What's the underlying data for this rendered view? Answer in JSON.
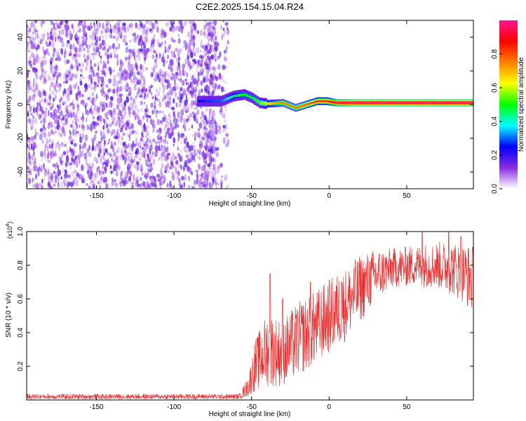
{
  "title": "C2E2.2025.154.15.04.R24",
  "chart_data": [
    {
      "type": "heatmap",
      "xlabel": "Height of straight line (km)",
      "ylabel": "Frequency (Hz)",
      "xlim": [
        -195,
        93
      ],
      "ylim": [
        -50,
        50
      ],
      "xticks": [
        -150,
        -100,
        -50,
        0,
        50
      ],
      "yticks": [
        -40,
        -20,
        0,
        20,
        40
      ],
      "colorbar": {
        "label": "Normalized spectral amplitude",
        "range": [
          0,
          1
        ],
        "ticks": [
          0.0,
          0.2,
          0.4,
          0.6,
          0.8
        ],
        "colors": [
          "#ffffff",
          "#8a2be2",
          "#0000ff",
          "#00ffff",
          "#00ff00",
          "#ffff00",
          "#ff8000",
          "#ff0000",
          "#ff1493"
        ]
      },
      "noise_region": {
        "x_range": [
          -195,
          -65
        ],
        "freq_range": [
          -50,
          50
        ],
        "amplitude": [
          0.05,
          0.2
        ]
      },
      "signal_track": [
        {
          "x": -85,
          "freq": 2,
          "amp": 0.25
        },
        {
          "x": -70,
          "freq": 2,
          "amp": 0.3
        },
        {
          "x": -62,
          "freq": 5,
          "amp": 0.45
        },
        {
          "x": -55,
          "freq": 6,
          "amp": 0.5
        },
        {
          "x": -50,
          "freq": 4,
          "amp": 0.5
        },
        {
          "x": -45,
          "freq": 1,
          "amp": 0.55
        },
        {
          "x": -40,
          "freq": 0.5,
          "amp": 0.65
        },
        {
          "x": -30,
          "freq": 1,
          "amp": 0.75
        },
        {
          "x": -22,
          "freq": -2,
          "amp": 0.75
        },
        {
          "x": -15,
          "freq": 0,
          "amp": 0.8
        },
        {
          "x": -8,
          "freq": 2,
          "amp": 0.85
        },
        {
          "x": -2,
          "freq": 2,
          "amp": 0.85
        },
        {
          "x": 5,
          "freq": 1,
          "amp": 0.95
        },
        {
          "x": 20,
          "freq": 1,
          "amp": 0.98
        },
        {
          "x": 50,
          "freq": 1,
          "amp": 0.98
        },
        {
          "x": 80,
          "freq": 1,
          "amp": 0.98
        },
        {
          "x": 93,
          "freq": 1,
          "amp": 0.98
        }
      ]
    },
    {
      "type": "line",
      "xlabel": "Height of straight line (km)",
      "ylabel": "SNR (10 * v/v)",
      "y_multiplier": "(x10",
      "y_multiplier_exp": "4",
      "y_multiplier_close": ")",
      "xlim": [
        -195,
        93
      ],
      "ylim": [
        0,
        1.0
      ],
      "xticks": [
        -150,
        -100,
        -50,
        0,
        50
      ],
      "yticks": [
        0.2,
        0.4,
        0.6,
        0.8,
        1.0
      ],
      "series_color": "#ee3030",
      "envelope": [
        {
          "x": -195,
          "base": 0.02,
          "spread": 0.015
        },
        {
          "x": -58,
          "base": 0.02,
          "spread": 0.015
        },
        {
          "x": -52,
          "base": 0.08,
          "spread": 0.06
        },
        {
          "x": -48,
          "base": 0.2,
          "spread": 0.15
        },
        {
          "x": -40,
          "base": 0.3,
          "spread": 0.22
        },
        {
          "x": -30,
          "base": 0.28,
          "spread": 0.2
        },
        {
          "x": -20,
          "base": 0.36,
          "spread": 0.22
        },
        {
          "x": -10,
          "base": 0.42,
          "spread": 0.22
        },
        {
          "x": 0,
          "base": 0.5,
          "spread": 0.22
        },
        {
          "x": 10,
          "base": 0.56,
          "spread": 0.22
        },
        {
          "x": 20,
          "base": 0.66,
          "spread": 0.2
        },
        {
          "x": 30,
          "base": 0.74,
          "spread": 0.16
        },
        {
          "x": 40,
          "base": 0.78,
          "spread": 0.12
        },
        {
          "x": 55,
          "base": 0.8,
          "spread": 0.12
        },
        {
          "x": 70,
          "base": 0.8,
          "spread": 0.14
        },
        {
          "x": 80,
          "base": 0.78,
          "spread": 0.16
        },
        {
          "x": 93,
          "base": 0.72,
          "spread": 0.2
        }
      ],
      "peaks": [
        {
          "x": -38,
          "y": 0.75
        },
        {
          "x": -30,
          "y": 0.6
        },
        {
          "x": -12,
          "y": 0.7
        },
        {
          "x": 8,
          "y": 0.7
        },
        {
          "x": 60,
          "y": 1.0
        },
        {
          "x": 77,
          "y": 1.0
        },
        {
          "x": 85,
          "y": 0.97
        }
      ]
    }
  ]
}
